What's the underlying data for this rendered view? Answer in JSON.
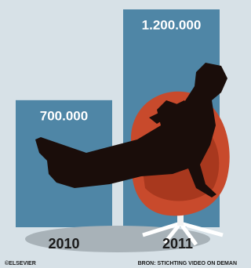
{
  "chart_data": {
    "type": "bar",
    "categories": [
      "2010",
      "2011"
    ],
    "values": [
      700000,
      1200000
    ],
    "value_labels": [
      "700.000",
      "1.200.000"
    ],
    "color": "#4f86a6",
    "credit": "©ELSEVIER",
    "source": "BRON: STICHTING VIDEO ON DEMAN"
  }
}
